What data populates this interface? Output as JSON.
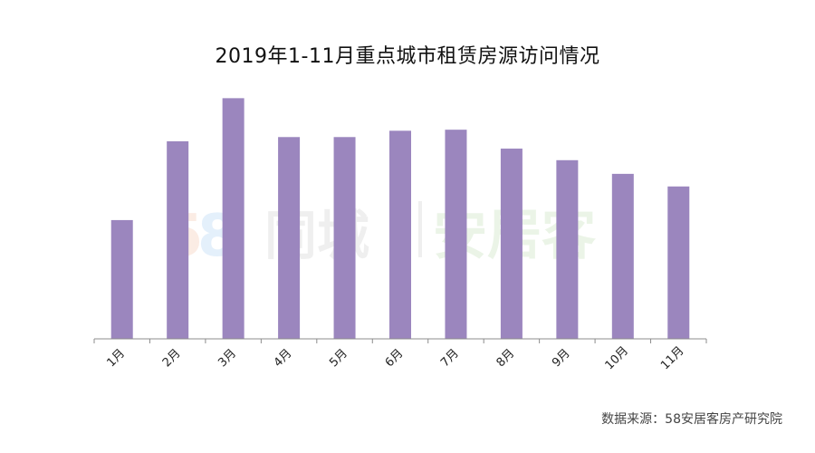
{
  "chart_data": {
    "type": "bar",
    "title": "2019年1-11月重点城市租赁房源访问情况",
    "categories": [
      "1月",
      "2月",
      "3月",
      "4月",
      "5月",
      "6月",
      "7月",
      "8月",
      "9月",
      "10月",
      "11月"
    ],
    "values": [
      113,
      188,
      229,
      192,
      192,
      198,
      199,
      181,
      170,
      157,
      145
    ],
    "xlabel": "",
    "ylabel": "",
    "ylim": [
      0,
      250
    ],
    "y_axis_visible": false,
    "grid": false,
    "legend": "none",
    "bar_color": "#9B86BE",
    "watermark": "58同城|安居客"
  },
  "source": "数据来源：58安居客房产研究院"
}
